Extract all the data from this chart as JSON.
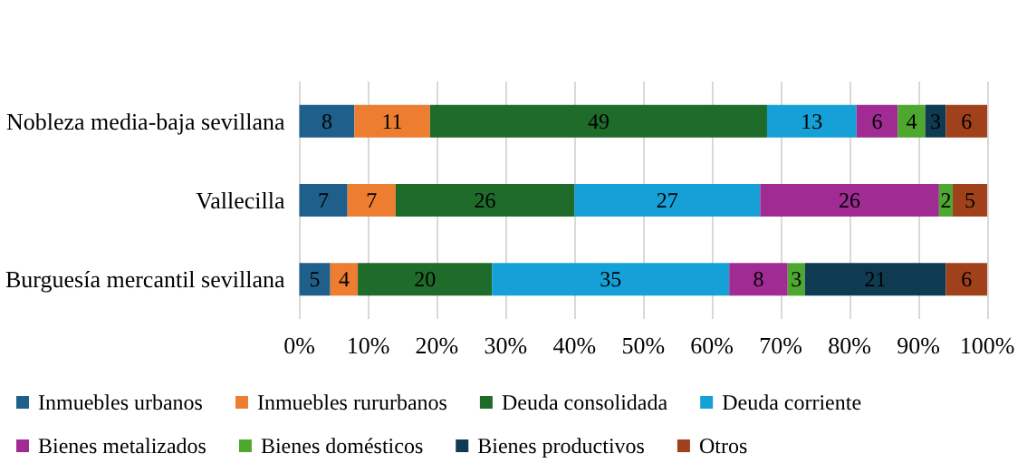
{
  "chart_data": {
    "type": "bar",
    "orientation": "horizontal",
    "stacked": true,
    "categories": [
      "Nobleza media-baja sevillana",
      "Vallecilla",
      "Burguesía mercantil sevillana"
    ],
    "series": [
      {
        "name": "Inmuebles urbanos",
        "color": "#1f5f8b",
        "values": [
          8,
          7,
          4.5
        ],
        "value_labels": [
          "8",
          "7",
          "5"
        ]
      },
      {
        "name": "Inmuebles rururbanos",
        "color": "#ed7d31",
        "values": [
          11,
          7,
          4
        ],
        "value_labels": [
          "11",
          "7",
          "4"
        ]
      },
      {
        "name": "Deuda consolidada",
        "color": "#1e6b2a",
        "values": [
          49,
          26,
          19.5
        ],
        "value_labels": [
          "49",
          "26",
          "20"
        ]
      },
      {
        "name": "Deuda corriente",
        "color": "#15a0d8",
        "values": [
          13,
          27,
          34.5
        ],
        "value_labels": [
          "13",
          "27",
          "35"
        ]
      },
      {
        "name": "Bienes metalizados",
        "color": "#a02b93",
        "values": [
          6,
          26,
          8.5
        ],
        "value_labels": [
          "6",
          "26",
          "8"
        ]
      },
      {
        "name": "Bienes domésticos",
        "color": "#4ea72e",
        "values": [
          4,
          2,
          2.5
        ],
        "value_labels": [
          "4",
          "2",
          "3"
        ]
      },
      {
        "name": "Bienes productivos",
        "color": "#0e3a52",
        "values": [
          3,
          null,
          20.5
        ],
        "value_labels": [
          "3",
          null,
          "21"
        ]
      },
      {
        "name": "Otros",
        "color": "#a0411b",
        "values": [
          6,
          5,
          6
        ],
        "value_labels": [
          "6",
          "5",
          "6"
        ]
      }
    ],
    "xlim": [
      0,
      100
    ],
    "xticks": [
      {
        "value": 0,
        "label": "0%"
      },
      {
        "value": 10,
        "label": "10%"
      },
      {
        "value": 20,
        "label": "20%"
      },
      {
        "value": 30,
        "label": "30%"
      },
      {
        "value": 40,
        "label": "40%"
      },
      {
        "value": 50,
        "label": "50%"
      },
      {
        "value": 60,
        "label": "60%"
      },
      {
        "value": 70,
        "label": "70%"
      },
      {
        "value": 80,
        "label": "80%"
      },
      {
        "value": 90,
        "label": "90%"
      },
      {
        "value": 100,
        "label": "100%"
      }
    ],
    "grid": "x",
    "legend": "bottom"
  }
}
